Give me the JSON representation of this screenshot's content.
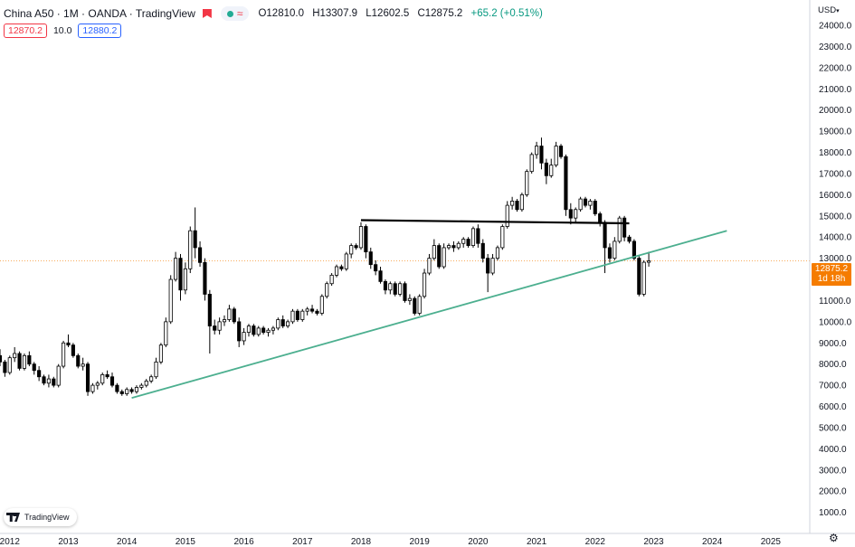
{
  "header": {
    "title": "China A50 · 1M · OANDA · TradingView",
    "ohlc": {
      "open": "O12810.0",
      "high": "H13307.9",
      "low": "L12602.5",
      "close": "C12875.2",
      "change": "+65.2 (+0.51%)"
    }
  },
  "quote": {
    "bid": "12870.2",
    "spread": "10.0",
    "ask": "12880.2"
  },
  "price_axis": {
    "currency": "USD"
  },
  "last_price": {
    "value": "12875.2",
    "countdown": "1d 18h"
  },
  "logo": {
    "text": "TradingView"
  },
  "colors": {
    "trendline": "#4caf8f",
    "last_price": "#f57c00",
    "bid": "#f23645",
    "ask": "#2962ff"
  },
  "chart_data": {
    "type": "candlestick",
    "x_unit": "month",
    "y_ticks": [
      1000,
      2000,
      3000,
      4000,
      5000,
      6000,
      7000,
      8000,
      9000,
      10000,
      11000,
      12000,
      13000,
      14000,
      15000,
      16000,
      17000,
      18000,
      19000,
      20000,
      21000,
      22000,
      23000,
      24000
    ],
    "y_tick_labels": [
      "1000.0",
      "2000.0",
      "3000.0",
      "4000.0",
      "5000.0",
      "6000.0",
      "7000.0",
      "8000.0",
      "9000.0",
      "10000.0",
      "11000.0",
      "12000.0",
      "13000.0",
      "14000.0",
      "15000.0",
      "16000.0",
      "17000.0",
      "18000.0",
      "19000.0",
      "20000.0",
      "21000.0",
      "22000.0",
      "23000.0",
      "24000.0"
    ],
    "ylim": [
      0,
      25200
    ],
    "x_ticks": [
      "2012-01",
      "2013-01",
      "2014-01",
      "2015-01",
      "2016-01",
      "2017-01",
      "2018-01",
      "2019-01",
      "2020-01",
      "2021-01",
      "2022-01",
      "2023-01",
      "2024-01",
      "2025-01"
    ],
    "x_tick_labels": [
      "2012",
      "2013",
      "2014",
      "2015",
      "2016",
      "2017",
      "2018",
      "2019",
      "2020",
      "2021",
      "2022",
      "2023",
      "2024",
      "2025"
    ],
    "xlim": [
      "2011-11",
      "2025-09"
    ],
    "candles": [
      {
        "t": "2011-11",
        "o": 8400,
        "h": 8700,
        "l": 7900,
        "c": 8100
      },
      {
        "t": "2011-12",
        "o": 8100,
        "h": 8200,
        "l": 7400,
        "c": 7600
      },
      {
        "t": "2012-01",
        "o": 7600,
        "h": 8400,
        "l": 7500,
        "c": 8300
      },
      {
        "t": "2012-02",
        "o": 8300,
        "h": 8800,
        "l": 8100,
        "c": 8500
      },
      {
        "t": "2012-03",
        "o": 8500,
        "h": 8600,
        "l": 7700,
        "c": 7800
      },
      {
        "t": "2012-04",
        "o": 7800,
        "h": 8500,
        "l": 7700,
        "c": 8400
      },
      {
        "t": "2012-05",
        "o": 8400,
        "h": 8600,
        "l": 7900,
        "c": 8000
      },
      {
        "t": "2012-06",
        "o": 8000,
        "h": 8100,
        "l": 7500,
        "c": 7700
      },
      {
        "t": "2012-07",
        "o": 7700,
        "h": 7900,
        "l": 7200,
        "c": 7400
      },
      {
        "t": "2012-08",
        "o": 7400,
        "h": 7500,
        "l": 7000,
        "c": 7100
      },
      {
        "t": "2012-09",
        "o": 7100,
        "h": 7500,
        "l": 6900,
        "c": 7300
      },
      {
        "t": "2012-10",
        "o": 7300,
        "h": 7400,
        "l": 6900,
        "c": 7000
      },
      {
        "t": "2012-11",
        "o": 7000,
        "h": 8000,
        "l": 6900,
        "c": 7900
      },
      {
        "t": "2012-12",
        "o": 7900,
        "h": 9100,
        "l": 7800,
        "c": 9000
      },
      {
        "t": "2013-01",
        "o": 9000,
        "h": 9400,
        "l": 8800,
        "c": 8900
      },
      {
        "t": "2013-02",
        "o": 8900,
        "h": 9000,
        "l": 8300,
        "c": 8400
      },
      {
        "t": "2013-03",
        "o": 8400,
        "h": 8500,
        "l": 7800,
        "c": 7900
      },
      {
        "t": "2013-04",
        "o": 7900,
        "h": 8300,
        "l": 7700,
        "c": 8000
      },
      {
        "t": "2013-05",
        "o": 8000,
        "h": 8100,
        "l": 6500,
        "c": 6700
      },
      {
        "t": "2013-06",
        "o": 6700,
        "h": 7100,
        "l": 6600,
        "c": 7000
      },
      {
        "t": "2013-07",
        "o": 7000,
        "h": 7200,
        "l": 6800,
        "c": 7100
      },
      {
        "t": "2013-08",
        "o": 7100,
        "h": 7600,
        "l": 7000,
        "c": 7500
      },
      {
        "t": "2013-09",
        "o": 7500,
        "h": 7700,
        "l": 7300,
        "c": 7400
      },
      {
        "t": "2013-10",
        "o": 7400,
        "h": 7600,
        "l": 6900,
        "c": 7000
      },
      {
        "t": "2013-11",
        "o": 7000,
        "h": 7100,
        "l": 6600,
        "c": 6700
      },
      {
        "t": "2013-12",
        "o": 6700,
        "h": 6800,
        "l": 6500,
        "c": 6600
      },
      {
        "t": "2014-01",
        "o": 6600,
        "h": 6900,
        "l": 6500,
        "c": 6800
      },
      {
        "t": "2014-02",
        "o": 6800,
        "h": 6900,
        "l": 6600,
        "c": 6700
      },
      {
        "t": "2014-03",
        "o": 6700,
        "h": 7000,
        "l": 6600,
        "c": 6900
      },
      {
        "t": "2014-04",
        "o": 6900,
        "h": 7100,
        "l": 6800,
        "c": 7000
      },
      {
        "t": "2014-05",
        "o": 7000,
        "h": 7300,
        "l": 6900,
        "c": 7200
      },
      {
        "t": "2014-06",
        "o": 7200,
        "h": 7500,
        "l": 7100,
        "c": 7400
      },
      {
        "t": "2014-07",
        "o": 7400,
        "h": 8300,
        "l": 7300,
        "c": 8100
      },
      {
        "t": "2014-08",
        "o": 8100,
        "h": 9000,
        "l": 8000,
        "c": 8900
      },
      {
        "t": "2014-09",
        "o": 8900,
        "h": 10200,
        "l": 8800,
        "c": 10000
      },
      {
        "t": "2014-10",
        "o": 10000,
        "h": 12200,
        "l": 9900,
        "c": 12000
      },
      {
        "t": "2014-11",
        "o": 12000,
        "h": 13300,
        "l": 11900,
        "c": 13000
      },
      {
        "t": "2014-12",
        "o": 13000,
        "h": 13200,
        "l": 11000,
        "c": 11500
      },
      {
        "t": "2015-01",
        "o": 11500,
        "h": 12800,
        "l": 11300,
        "c": 12500
      },
      {
        "t": "2015-02",
        "o": 12500,
        "h": 14500,
        "l": 12300,
        "c": 14300
      },
      {
        "t": "2015-03",
        "o": 14300,
        "h": 15400,
        "l": 13000,
        "c": 13500
      },
      {
        "t": "2015-04",
        "o": 13500,
        "h": 13800,
        "l": 12600,
        "c": 12800
      },
      {
        "t": "2015-05",
        "o": 12800,
        "h": 13000,
        "l": 11000,
        "c": 11300
      },
      {
        "t": "2015-06",
        "o": 11300,
        "h": 11500,
        "l": 8500,
        "c": 9800
      },
      {
        "t": "2015-07",
        "o": 9800,
        "h": 10100,
        "l": 9400,
        "c": 9600
      },
      {
        "t": "2015-08",
        "o": 9600,
        "h": 10200,
        "l": 9400,
        "c": 10000
      },
      {
        "t": "2015-09",
        "o": 10000,
        "h": 10300,
        "l": 9800,
        "c": 10100
      },
      {
        "t": "2015-10",
        "o": 10100,
        "h": 10800,
        "l": 10000,
        "c": 10600
      },
      {
        "t": "2015-11",
        "o": 10600,
        "h": 10700,
        "l": 9900,
        "c": 10000
      },
      {
        "t": "2015-12",
        "o": 10000,
        "h": 10200,
        "l": 8800,
        "c": 9100
      },
      {
        "t": "2016-01",
        "o": 9100,
        "h": 9700,
        "l": 8900,
        "c": 9500
      },
      {
        "t": "2016-02",
        "o": 9500,
        "h": 9900,
        "l": 9300,
        "c": 9800
      },
      {
        "t": "2016-03",
        "o": 9800,
        "h": 9900,
        "l": 9300,
        "c": 9400
      },
      {
        "t": "2016-04",
        "o": 9400,
        "h": 9800,
        "l": 9300,
        "c": 9700
      },
      {
        "t": "2016-05",
        "o": 9700,
        "h": 9800,
        "l": 9400,
        "c": 9500
      },
      {
        "t": "2016-06",
        "o": 9500,
        "h": 9700,
        "l": 9300,
        "c": 9600
      },
      {
        "t": "2016-07",
        "o": 9600,
        "h": 9800,
        "l": 9400,
        "c": 9700
      },
      {
        "t": "2016-08",
        "o": 9700,
        "h": 10200,
        "l": 9600,
        "c": 10100
      },
      {
        "t": "2016-09",
        "o": 10100,
        "h": 10300,
        "l": 9700,
        "c": 9800
      },
      {
        "t": "2016-10",
        "o": 9800,
        "h": 10100,
        "l": 9700,
        "c": 10000
      },
      {
        "t": "2016-11",
        "o": 10000,
        "h": 10600,
        "l": 9900,
        "c": 10500
      },
      {
        "t": "2016-12",
        "o": 10500,
        "h": 10600,
        "l": 10000,
        "c": 10100
      },
      {
        "t": "2017-01",
        "o": 10100,
        "h": 10600,
        "l": 10000,
        "c": 10500
      },
      {
        "t": "2017-02",
        "o": 10500,
        "h": 10700,
        "l": 10300,
        "c": 10600
      },
      {
        "t": "2017-03",
        "o": 10600,
        "h": 10800,
        "l": 10400,
        "c": 10500
      },
      {
        "t": "2017-04",
        "o": 10500,
        "h": 10600,
        "l": 10300,
        "c": 10400
      },
      {
        "t": "2017-05",
        "o": 10400,
        "h": 11300,
        "l": 10300,
        "c": 11200
      },
      {
        "t": "2017-06",
        "o": 11200,
        "h": 11900,
        "l": 11100,
        "c": 11800
      },
      {
        "t": "2017-07",
        "o": 11800,
        "h": 12300,
        "l": 11700,
        "c": 12200
      },
      {
        "t": "2017-08",
        "o": 12200,
        "h": 12700,
        "l": 12100,
        "c": 12600
      },
      {
        "t": "2017-09",
        "o": 12600,
        "h": 12700,
        "l": 12400,
        "c": 12500
      },
      {
        "t": "2017-10",
        "o": 12500,
        "h": 13300,
        "l": 12400,
        "c": 13200
      },
      {
        "t": "2017-11",
        "o": 13200,
        "h": 13700,
        "l": 13000,
        "c": 13600
      },
      {
        "t": "2017-12",
        "o": 13600,
        "h": 13700,
        "l": 13400,
        "c": 13500
      },
      {
        "t": "2018-01",
        "o": 13500,
        "h": 14700,
        "l": 13400,
        "c": 14500
      },
      {
        "t": "2018-02",
        "o": 14500,
        "h": 14600,
        "l": 13000,
        "c": 13300
      },
      {
        "t": "2018-03",
        "o": 13300,
        "h": 13500,
        "l": 12500,
        "c": 12700
      },
      {
        "t": "2018-04",
        "o": 12700,
        "h": 12900,
        "l": 12200,
        "c": 12400
      },
      {
        "t": "2018-05",
        "o": 12400,
        "h": 12600,
        "l": 11800,
        "c": 11900
      },
      {
        "t": "2018-06",
        "o": 11900,
        "h": 12000,
        "l": 11300,
        "c": 11500
      },
      {
        "t": "2018-07",
        "o": 11500,
        "h": 11900,
        "l": 11300,
        "c": 11800
      },
      {
        "t": "2018-08",
        "o": 11800,
        "h": 11900,
        "l": 11200,
        "c": 11300
      },
      {
        "t": "2018-09",
        "o": 11300,
        "h": 11900,
        "l": 11200,
        "c": 11800
      },
      {
        "t": "2018-10",
        "o": 11800,
        "h": 11900,
        "l": 10900,
        "c": 11000
      },
      {
        "t": "2018-11",
        "o": 11000,
        "h": 11300,
        "l": 10800,
        "c": 11100
      },
      {
        "t": "2018-12",
        "o": 11100,
        "h": 11200,
        "l": 10300,
        "c": 10400
      },
      {
        "t": "2019-01",
        "o": 10400,
        "h": 11300,
        "l": 10300,
        "c": 11200
      },
      {
        "t": "2019-02",
        "o": 11200,
        "h": 12500,
        "l": 11100,
        "c": 12300
      },
      {
        "t": "2019-03",
        "o": 12300,
        "h": 13200,
        "l": 12200,
        "c": 13000
      },
      {
        "t": "2019-04",
        "o": 13000,
        "h": 13900,
        "l": 12900,
        "c": 13600
      },
      {
        "t": "2019-05",
        "o": 13600,
        "h": 13700,
        "l": 12500,
        "c": 12600
      },
      {
        "t": "2019-06",
        "o": 12600,
        "h": 13700,
        "l": 12500,
        "c": 13500
      },
      {
        "t": "2019-07",
        "o": 13500,
        "h": 13700,
        "l": 13400,
        "c": 13600
      },
      {
        "t": "2019-08",
        "o": 13600,
        "h": 13800,
        "l": 13300,
        "c": 13500
      },
      {
        "t": "2019-09",
        "o": 13500,
        "h": 13800,
        "l": 13400,
        "c": 13700
      },
      {
        "t": "2019-10",
        "o": 13700,
        "h": 14000,
        "l": 13500,
        "c": 13900
      },
      {
        "t": "2019-11",
        "o": 13900,
        "h": 14000,
        "l": 13500,
        "c": 13600
      },
      {
        "t": "2019-12",
        "o": 13600,
        "h": 14500,
        "l": 13500,
        "c": 14400
      },
      {
        "t": "2020-01",
        "o": 14400,
        "h": 14600,
        "l": 13500,
        "c": 13700
      },
      {
        "t": "2020-02",
        "o": 13700,
        "h": 13900,
        "l": 12800,
        "c": 13000
      },
      {
        "t": "2020-03",
        "o": 13000,
        "h": 13200,
        "l": 11400,
        "c": 12300
      },
      {
        "t": "2020-04",
        "o": 12300,
        "h": 13200,
        "l": 12200,
        "c": 13000
      },
      {
        "t": "2020-05",
        "o": 13000,
        "h": 13600,
        "l": 12900,
        "c": 13500
      },
      {
        "t": "2020-06",
        "o": 13500,
        "h": 14600,
        "l": 13400,
        "c": 14500
      },
      {
        "t": "2020-07",
        "o": 14500,
        "h": 15700,
        "l": 14400,
        "c": 15500
      },
      {
        "t": "2020-08",
        "o": 15500,
        "h": 15900,
        "l": 15300,
        "c": 15700
      },
      {
        "t": "2020-09",
        "o": 15700,
        "h": 15800,
        "l": 15200,
        "c": 15300
      },
      {
        "t": "2020-10",
        "o": 15300,
        "h": 16100,
        "l": 15200,
        "c": 16000
      },
      {
        "t": "2020-11",
        "o": 16000,
        "h": 17200,
        "l": 15900,
        "c": 17100
      },
      {
        "t": "2020-12",
        "o": 17100,
        "h": 18000,
        "l": 17000,
        "c": 17900
      },
      {
        "t": "2021-01",
        "o": 17900,
        "h": 18500,
        "l": 17700,
        "c": 18300
      },
      {
        "t": "2021-02",
        "o": 18300,
        "h": 18700,
        "l": 17200,
        "c": 17500
      },
      {
        "t": "2021-03",
        "o": 17500,
        "h": 17700,
        "l": 16500,
        "c": 16900
      },
      {
        "t": "2021-04",
        "o": 16900,
        "h": 17700,
        "l": 16800,
        "c": 17400
      },
      {
        "t": "2021-05",
        "o": 17400,
        "h": 18500,
        "l": 17300,
        "c": 18300
      },
      {
        "t": "2021-06",
        "o": 18300,
        "h": 18400,
        "l": 17700,
        "c": 17800
      },
      {
        "t": "2021-07",
        "o": 17800,
        "h": 17900,
        "l": 15000,
        "c": 15300
      },
      {
        "t": "2021-08",
        "o": 15300,
        "h": 15600,
        "l": 14600,
        "c": 14900
      },
      {
        "t": "2021-09",
        "o": 14900,
        "h": 15400,
        "l": 14700,
        "c": 15300
      },
      {
        "t": "2021-10",
        "o": 15300,
        "h": 15900,
        "l": 15200,
        "c": 15800
      },
      {
        "t": "2021-11",
        "o": 15800,
        "h": 15900,
        "l": 15400,
        "c": 15500
      },
      {
        "t": "2021-12",
        "o": 15500,
        "h": 15800,
        "l": 15300,
        "c": 15700
      },
      {
        "t": "2022-01",
        "o": 15700,
        "h": 15800,
        "l": 15000,
        "c": 15100
      },
      {
        "t": "2022-02",
        "o": 15100,
        "h": 15200,
        "l": 14500,
        "c": 14700
      },
      {
        "t": "2022-03",
        "o": 14700,
        "h": 14800,
        "l": 12300,
        "c": 13500
      },
      {
        "t": "2022-04",
        "o": 13500,
        "h": 13700,
        "l": 12800,
        "c": 13000
      },
      {
        "t": "2022-05",
        "o": 13000,
        "h": 14000,
        "l": 12900,
        "c": 13800
      },
      {
        "t": "2022-06",
        "o": 13800,
        "h": 15000,
        "l": 13700,
        "c": 14900
      },
      {
        "t": "2022-07",
        "o": 14900,
        "h": 15000,
        "l": 13800,
        "c": 14000
      },
      {
        "t": "2022-08",
        "o": 14000,
        "h": 14100,
        "l": 13700,
        "c": 13800
      },
      {
        "t": "2022-09",
        "o": 13800,
        "h": 13900,
        "l": 12900,
        "c": 13000
      },
      {
        "t": "2022-10",
        "o": 13000,
        "h": 13100,
        "l": 11200,
        "c": 11300
      },
      {
        "t": "2022-11",
        "o": 11300,
        "h": 12900,
        "l": 11200,
        "c": 12810
      },
      {
        "t": "2022-12",
        "o": 12810,
        "h": 13307.9,
        "l": 12602.5,
        "c": 12875.2
      }
    ],
    "trendlines": [
      {
        "name": "resistance",
        "color": "#000000",
        "points": [
          {
            "t": "2018-01",
            "y": 14800
          },
          {
            "t": "2022-08",
            "y": 14650
          }
        ]
      },
      {
        "name": "support",
        "color": "#4caf8f",
        "points": [
          {
            "t": "2014-02",
            "y": 6400
          },
          {
            "t": "2024-04",
            "y": 14300
          }
        ]
      }
    ],
    "last_price_line": 12875.2
  }
}
